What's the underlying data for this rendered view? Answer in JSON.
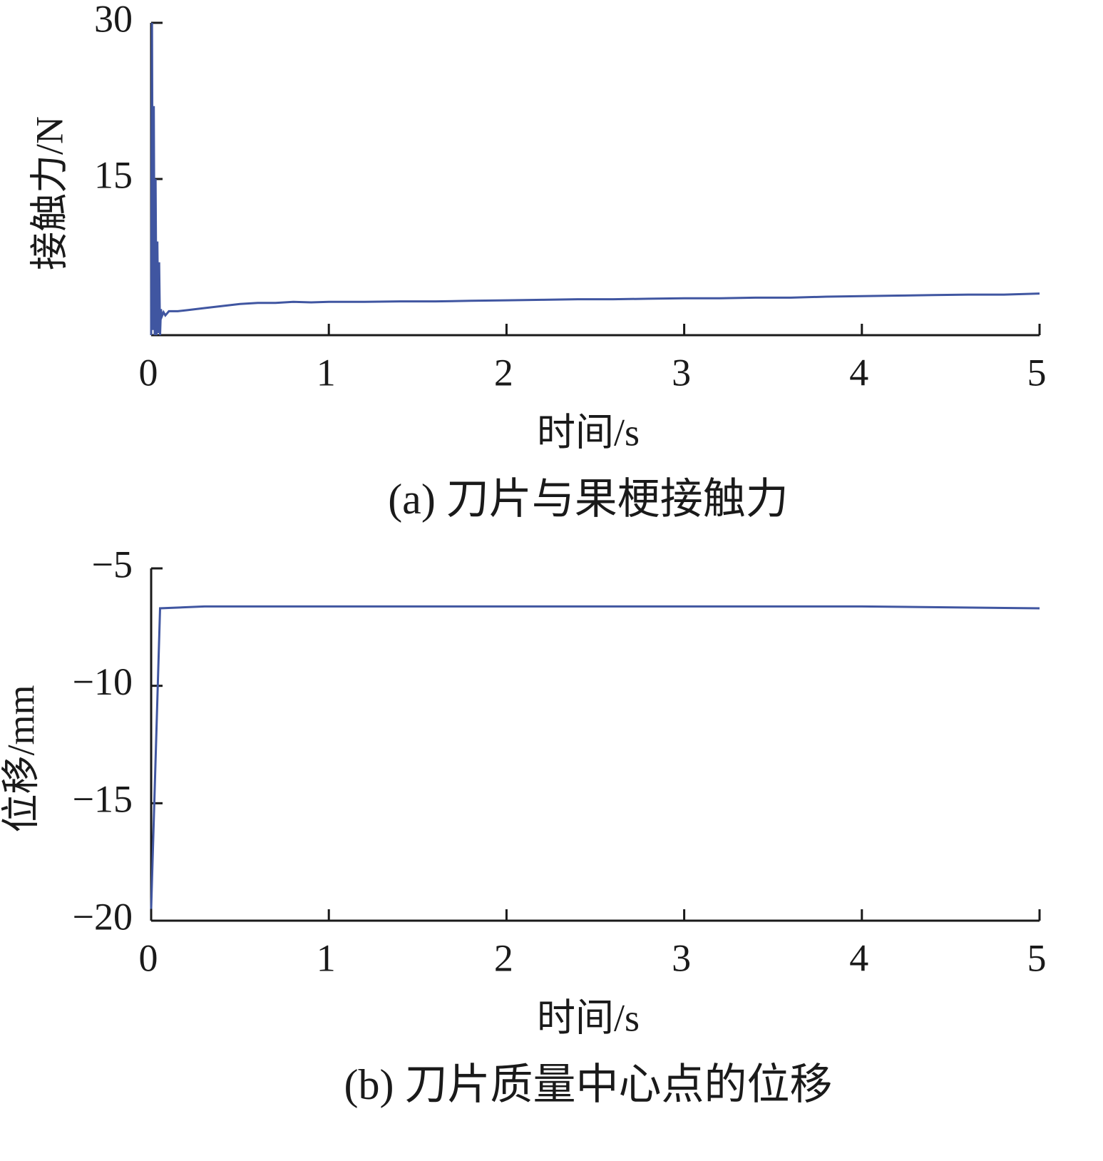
{
  "chart_data": [
    {
      "type": "line",
      "caption": "(a)  刀片与果梗接触力",
      "x_label": "时间/s",
      "y_label": "接触力/N",
      "xlim": [
        0,
        5
      ],
      "xticks": [
        0,
        1,
        2,
        3,
        4,
        5
      ],
      "ylim": [
        0,
        30
      ],
      "yticks": [
        15,
        30
      ],
      "series": [
        {
          "color": "#4056a1",
          "x": [
            0,
            0.005,
            0.01,
            0.015,
            0.02,
            0.025,
            0.03,
            0.035,
            0.04,
            0.045,
            0.05,
            0.055,
            0.06,
            0.07,
            0.08,
            0.1,
            0.15,
            0.2,
            0.3,
            0.4,
            0.5,
            0.6,
            0.7,
            0.8,
            0.9,
            1.0,
            1.2,
            1.4,
            1.6,
            1.8,
            2.0,
            2.2,
            2.4,
            2.6,
            2.8,
            3.0,
            3.2,
            3.4,
            3.6,
            3.8,
            4.0,
            4.2,
            4.4,
            4.6,
            4.8,
            5.0
          ],
          "values": [
            0,
            30,
            0.5,
            22,
            0,
            15,
            0,
            9,
            0.2,
            7,
            0,
            2.5,
            1.8,
            2.2,
            1.9,
            2.3,
            2.3,
            2.4,
            2.6,
            2.8,
            3.0,
            3.1,
            3.1,
            3.2,
            3.15,
            3.2,
            3.2,
            3.25,
            3.25,
            3.3,
            3.35,
            3.4,
            3.45,
            3.45,
            3.5,
            3.55,
            3.55,
            3.6,
            3.6,
            3.7,
            3.75,
            3.8,
            3.85,
            3.9,
            3.9,
            4.0
          ]
        }
      ]
    },
    {
      "type": "line",
      "caption": "(b)  刀片质量中心点的位移",
      "x_label": "时间/s",
      "y_label": "位移/mm",
      "xlim": [
        0,
        5
      ],
      "xticks": [
        0,
        1,
        2,
        3,
        4,
        5
      ],
      "ylim": [
        -20,
        -5
      ],
      "yticks": [
        {
          "value": -20,
          "label": "−20"
        },
        {
          "value": -15,
          "label": "−15"
        },
        {
          "value": -10,
          "label": "−10"
        },
        {
          "value": -5,
          "label": "−5"
        }
      ],
      "series": [
        {
          "color": "#4056a1",
          "x": [
            0,
            0.05,
            0.3,
            1,
            2,
            3,
            4,
            5
          ],
          "values": [
            -19.5,
            -6.7,
            -6.62,
            -6.62,
            -6.62,
            -6.62,
            -6.62,
            -6.7
          ]
        }
      ]
    }
  ]
}
